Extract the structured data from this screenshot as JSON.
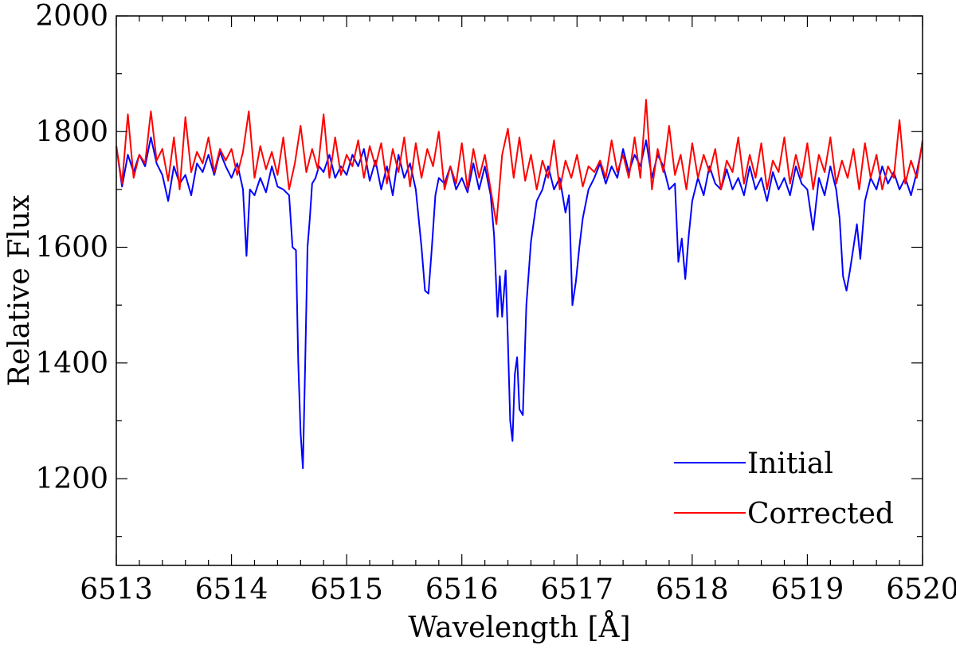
{
  "chart_data": {
    "type": "line",
    "xlabel": "Wavelength [Å]",
    "ylabel": "Relative Flux",
    "xlim": [
      6513,
      6520
    ],
    "ylim": [
      1050,
      2000
    ],
    "xticks": [
      6513,
      6514,
      6515,
      6516,
      6517,
      6518,
      6519,
      6520
    ],
    "xtick_labels": [
      "6513",
      "6514",
      "6515",
      "6516",
      "6517",
      "6518",
      "6519",
      "6520"
    ],
    "yticks": [
      1200,
      1400,
      1600,
      1800,
      2000
    ],
    "ytick_labels": [
      "1200",
      "1400",
      "1600",
      "1800",
      "2000"
    ],
    "grid": false,
    "legend_position": "bottom-right",
    "series": [
      {
        "name": "Initial",
        "color": "#0000ff",
        "x": [
          6513.0,
          6513.05,
          6513.1,
          6513.15,
          6513.2,
          6513.25,
          6513.3,
          6513.35,
          6513.4,
          6513.45,
          6513.5,
          6513.55,
          6513.6,
          6513.65,
          6513.7,
          6513.75,
          6513.8,
          6513.85,
          6513.9,
          6513.95,
          6514.0,
          6514.05,
          6514.1,
          6514.13,
          6514.16,
          6514.2,
          6514.25,
          6514.3,
          6514.35,
          6514.4,
          6514.45,
          6514.5,
          6514.53,
          6514.56,
          6514.58,
          6514.6,
          6514.62,
          6514.64,
          6514.66,
          6514.68,
          6514.7,
          6514.73,
          6514.76,
          6514.8,
          6514.85,
          6514.9,
          6514.95,
          6515.0,
          6515.05,
          6515.1,
          6515.15,
          6515.2,
          6515.25,
          6515.3,
          6515.35,
          6515.4,
          6515.45,
          6515.5,
          6515.55,
          6515.6,
          6515.65,
          6515.68,
          6515.71,
          6515.74,
          6515.77,
          6515.8,
          6515.85,
          6515.9,
          6515.95,
          6516.0,
          6516.05,
          6516.1,
          6516.15,
          6516.2,
          6516.25,
          6516.28,
          6516.31,
          6516.33,
          6516.35,
          6516.38,
          6516.4,
          6516.42,
          6516.44,
          6516.46,
          6516.48,
          6516.5,
          6516.53,
          6516.56,
          6516.6,
          6516.65,
          6516.7,
          6516.75,
          6516.8,
          6516.85,
          6516.9,
          6516.93,
          6516.96,
          6516.99,
          6517.02,
          6517.05,
          6517.1,
          6517.15,
          6517.2,
          6517.25,
          6517.3,
          6517.35,
          6517.4,
          6517.45,
          6517.5,
          6517.55,
          6517.6,
          6517.65,
          6517.7,
          6517.75,
          6517.8,
          6517.85,
          6517.88,
          6517.91,
          6517.94,
          6517.97,
          6518.0,
          6518.05,
          6518.1,
          6518.15,
          6518.2,
          6518.25,
          6518.3,
          6518.35,
          6518.4,
          6518.45,
          6518.5,
          6518.55,
          6518.6,
          6518.65,
          6518.7,
          6518.75,
          6518.8,
          6518.85,
          6518.9,
          6518.95,
          6519.0,
          6519.05,
          6519.1,
          6519.15,
          6519.2,
          6519.25,
          6519.28,
          6519.31,
          6519.34,
          6519.37,
          6519.4,
          6519.43,
          6519.46,
          6519.5,
          6519.55,
          6519.6,
          6519.65,
          6519.7,
          6519.75,
          6519.8,
          6519.85,
          6519.9,
          6519.95,
          6520.0
        ],
        "y": [
          1775,
          1705,
          1760,
          1730,
          1760,
          1740,
          1790,
          1745,
          1725,
          1680,
          1740,
          1710,
          1725,
          1690,
          1745,
          1730,
          1760,
          1725,
          1765,
          1740,
          1720,
          1745,
          1700,
          1585,
          1700,
          1690,
          1720,
          1695,
          1740,
          1705,
          1700,
          1690,
          1600,
          1595,
          1400,
          1280,
          1218,
          1400,
          1600,
          1650,
          1710,
          1720,
          1740,
          1730,
          1760,
          1720,
          1740,
          1725,
          1760,
          1740,
          1770,
          1715,
          1750,
          1700,
          1740,
          1690,
          1760,
          1720,
          1745,
          1700,
          1600,
          1525,
          1520,
          1600,
          1690,
          1720,
          1710,
          1740,
          1700,
          1720,
          1695,
          1745,
          1700,
          1740,
          1690,
          1620,
          1480,
          1550,
          1480,
          1560,
          1440,
          1300,
          1265,
          1380,
          1410,
          1320,
          1310,
          1500,
          1610,
          1680,
          1700,
          1740,
          1700,
          1720,
          1660,
          1690,
          1500,
          1540,
          1600,
          1650,
          1700,
          1720,
          1745,
          1710,
          1740,
          1720,
          1770,
          1730,
          1760,
          1740,
          1785,
          1720,
          1760,
          1740,
          1700,
          1710,
          1575,
          1615,
          1545,
          1620,
          1680,
          1720,
          1690,
          1740,
          1710,
          1700,
          1735,
          1700,
          1720,
          1690,
          1740,
          1700,
          1720,
          1680,
          1730,
          1700,
          1720,
          1690,
          1740,
          1710,
          1700,
          1630,
          1720,
          1690,
          1740,
          1700,
          1650,
          1550,
          1525,
          1560,
          1600,
          1640,
          1580,
          1680,
          1720,
          1700,
          1740,
          1710,
          1730,
          1700,
          1720,
          1690,
          1730,
          1780
        ]
      },
      {
        "name": "Corrected",
        "color": "#ff0000",
        "x": [
          6513.0,
          6513.05,
          6513.1,
          6513.15,
          6513.2,
          6513.25,
          6513.3,
          6513.35,
          6513.4,
          6513.45,
          6513.5,
          6513.55,
          6513.6,
          6513.65,
          6513.7,
          6513.75,
          6513.8,
          6513.85,
          6513.9,
          6513.95,
          6514.0,
          6514.05,
          6514.1,
          6514.15,
          6514.2,
          6514.25,
          6514.3,
          6514.35,
          6514.4,
          6514.45,
          6514.5,
          6514.55,
          6514.6,
          6514.65,
          6514.7,
          6514.75,
          6514.8,
          6514.85,
          6514.9,
          6514.95,
          6515.0,
          6515.05,
          6515.1,
          6515.15,
          6515.2,
          6515.25,
          6515.3,
          6515.35,
          6515.4,
          6515.45,
          6515.5,
          6515.55,
          6515.6,
          6515.65,
          6515.7,
          6515.75,
          6515.8,
          6515.85,
          6515.9,
          6515.95,
          6516.0,
          6516.05,
          6516.1,
          6516.15,
          6516.2,
          6516.25,
          6516.3,
          6516.35,
          6516.4,
          6516.45,
          6516.5,
          6516.55,
          6516.6,
          6516.65,
          6516.7,
          6516.75,
          6516.8,
          6516.85,
          6516.9,
          6516.95,
          6517.0,
          6517.05,
          6517.1,
          6517.15,
          6517.2,
          6517.25,
          6517.3,
          6517.35,
          6517.4,
          6517.45,
          6517.5,
          6517.55,
          6517.6,
          6517.65,
          6517.7,
          6517.75,
          6517.8,
          6517.85,
          6517.9,
          6517.95,
          6518.0,
          6518.05,
          6518.1,
          6518.15,
          6518.2,
          6518.25,
          6518.3,
          6518.35,
          6518.4,
          6518.45,
          6518.5,
          6518.55,
          6518.6,
          6518.65,
          6518.7,
          6518.75,
          6518.8,
          6518.85,
          6518.9,
          6518.95,
          6519.0,
          6519.05,
          6519.1,
          6519.15,
          6519.2,
          6519.25,
          6519.3,
          6519.35,
          6519.4,
          6519.45,
          6519.5,
          6519.55,
          6519.6,
          6519.65,
          6519.7,
          6519.75,
          6519.8,
          6519.85,
          6519.9,
          6519.95,
          6520.0
        ],
        "y": [
          1775,
          1710,
          1830,
          1720,
          1760,
          1745,
          1835,
          1750,
          1770,
          1715,
          1790,
          1700,
          1825,
          1730,
          1765,
          1745,
          1790,
          1730,
          1770,
          1750,
          1770,
          1725,
          1765,
          1835,
          1720,
          1775,
          1735,
          1765,
          1725,
          1790,
          1700,
          1745,
          1810,
          1730,
          1770,
          1735,
          1830,
          1720,
          1790,
          1725,
          1760,
          1740,
          1785,
          1720,
          1775,
          1740,
          1780,
          1710,
          1770,
          1730,
          1790,
          1705,
          1780,
          1720,
          1770,
          1740,
          1800,
          1700,
          1740,
          1710,
          1780,
          1700,
          1770,
          1720,
          1760,
          1700,
          1640,
          1760,
          1805,
          1720,
          1790,
          1715,
          1760,
          1700,
          1750,
          1720,
          1785,
          1700,
          1750,
          1720,
          1760,
          1705,
          1740,
          1730,
          1750,
          1720,
          1785,
          1730,
          1760,
          1720,
          1790,
          1720,
          1855,
          1700,
          1770,
          1730,
          1810,
          1725,
          1760,
          1700,
          1780,
          1720,
          1760,
          1730,
          1770,
          1700,
          1750,
          1730,
          1790,
          1710,
          1760,
          1720,
          1780,
          1700,
          1750,
          1730,
          1790,
          1710,
          1760,
          1720,
          1780,
          1700,
          1760,
          1730,
          1790,
          1710,
          1750,
          1720,
          1770,
          1700,
          1780,
          1720,
          1760,
          1700,
          1740,
          1720,
          1820,
          1710,
          1750,
          1720,
          1785
        ]
      }
    ]
  }
}
